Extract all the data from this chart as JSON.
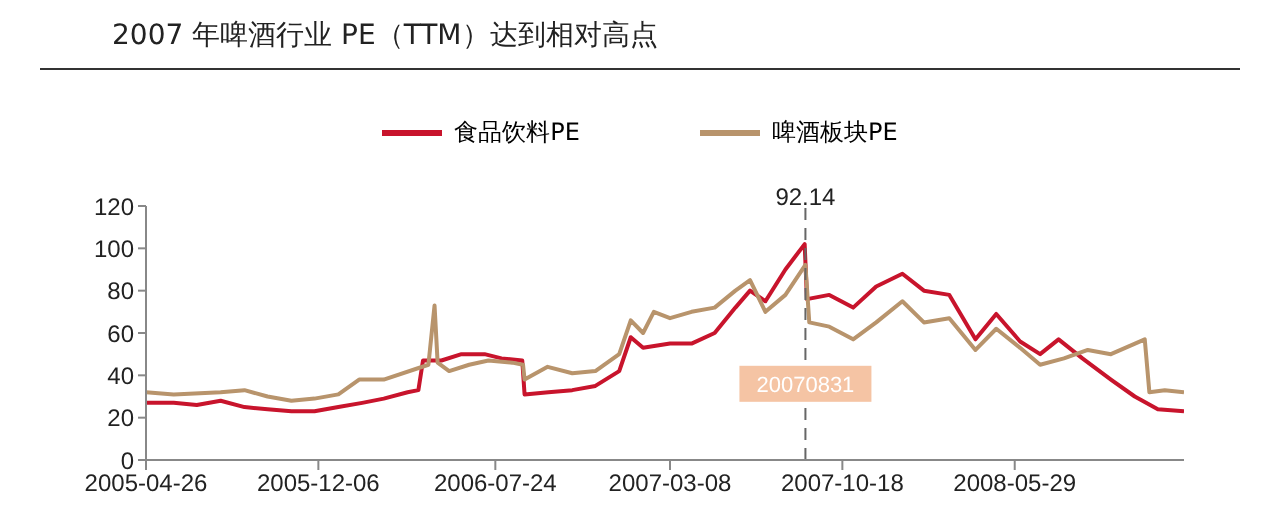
{
  "chart_data": {
    "type": "line",
    "title": "2007 年啤酒行业 PE（TTM）达到相对高点",
    "legend": "top",
    "marker": "none",
    "line_style": "solid",
    "xlim": [
      "2005-04-26",
      "2009-01-04"
    ],
    "xticks": [
      "2005-04-26",
      "2005-12-06",
      "2006-07-24",
      "2007-03-08",
      "2007-10-18",
      "2008-05-29"
    ],
    "ylim": [
      0,
      120
    ],
    "yticks": [
      0,
      20,
      40,
      60,
      80,
      100,
      120
    ],
    "ref_lines": [
      {
        "axis": "x",
        "value": "2007-08-31",
        "label": "20070831",
        "color": "#666666",
        "line_style": "dashed"
      }
    ],
    "annotations": [
      {
        "text": "92.14",
        "x": "2007-08-31",
        "y": 92.14
      }
    ],
    "series": [
      {
        "name": "食品饮料PE",
        "color": "#c8142c",
        "x": [
          "2005-04-26",
          "2005-06-01",
          "2005-07-01",
          "2005-08-01",
          "2005-09-01",
          "2005-10-01",
          "2005-11-01",
          "2005-12-01",
          "2006-01-01",
          "2006-02-01",
          "2006-03-01",
          "2006-04-01",
          "2006-04-15",
          "2006-04-21",
          "2006-05-15",
          "2006-06-10",
          "2006-07-10",
          "2006-08-01",
          "2006-08-28",
          "2006-08-31",
          "2006-10-01",
          "2006-11-01",
          "2006-12-01",
          "2007-01-01",
          "2007-01-16",
          "2007-02-01",
          "2007-03-08",
          "2007-04-05",
          "2007-05-05",
          "2007-06-01",
          "2007-06-20",
          "2007-07-10",
          "2007-08-05",
          "2007-08-30",
          "2007-09-02",
          "2007-10-01",
          "2007-11-01",
          "2007-12-01",
          "2008-01-04",
          "2008-02-01",
          "2008-03-05",
          "2008-04-08",
          "2008-05-05",
          "2008-06-05",
          "2008-07-01",
          "2008-07-25",
          "2008-08-25",
          "2008-10-01",
          "2008-11-01",
          "2008-12-01",
          "2009-01-04"
        ],
        "values": [
          27,
          27,
          26,
          28,
          25,
          24,
          23,
          23,
          25,
          27,
          29,
          32,
          33,
          47,
          47,
          50,
          50,
          48,
          47,
          31,
          32,
          33,
          35,
          42,
          58,
          53,
          55,
          55,
          60,
          72,
          80,
          75,
          90,
          102,
          76,
          78,
          72,
          82,
          88,
          80,
          78,
          57,
          69,
          56,
          50,
          57,
          48,
          38,
          30,
          24,
          23
        ]
      },
      {
        "name": "啤酒板块PE",
        "color": "#b8946c",
        "x": [
          "2005-04-26",
          "2005-06-01",
          "2005-08-01",
          "2005-09-01",
          "2005-10-01",
          "2005-11-01",
          "2005-12-01",
          "2006-01-01",
          "2006-01-28",
          "2006-03-01",
          "2006-04-28",
          "2006-05-06",
          "2006-05-10",
          "2006-05-25",
          "2006-06-20",
          "2006-07-15",
          "2006-08-15",
          "2006-08-29",
          "2006-08-31",
          "2006-09-30",
          "2006-11-01",
          "2006-12-01",
          "2007-01-01",
          "2007-01-16",
          "2007-02-01",
          "2007-02-15",
          "2007-03-08",
          "2007-04-05",
          "2007-05-05",
          "2007-06-01",
          "2007-06-20",
          "2007-07-10",
          "2007-08-05",
          "2007-08-31",
          "2007-09-05",
          "2007-10-01",
          "2007-11-01",
          "2007-12-01",
          "2008-01-04",
          "2008-02-01",
          "2008-03-05",
          "2008-04-08",
          "2008-05-05",
          "2008-06-05",
          "2008-07-01",
          "2008-08-01",
          "2008-09-01",
          "2008-10-01",
          "2008-11-14",
          "2008-11-20",
          "2008-12-10",
          "2009-01-04"
        ],
        "values": [
          32,
          31,
          32,
          33,
          30,
          28,
          29,
          31,
          38,
          38,
          45,
          73,
          46,
          42,
          45,
          47,
          46,
          45,
          38,
          44,
          41,
          42,
          50,
          66,
          60,
          70,
          67,
          70,
          72,
          80,
          85,
          70,
          78,
          92.14,
          65,
          63,
          57,
          65,
          75,
          65,
          67,
          52,
          62,
          53,
          45,
          48,
          52,
          50,
          57,
          32,
          33,
          32
        ]
      }
    ]
  }
}
